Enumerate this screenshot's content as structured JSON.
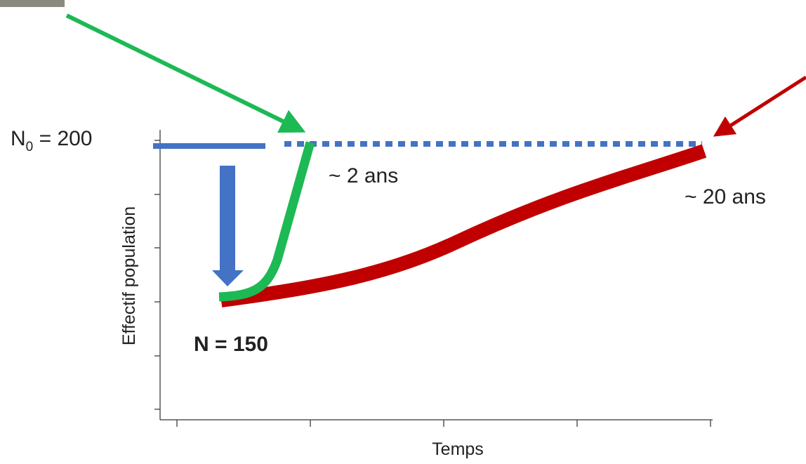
{
  "start_label": {
    "main": "N",
    "sub": "0",
    "rest": " = 200"
  },
  "fast_label": "~ 2 ans",
  "slow_label": "~ 20 ans",
  "low_label": "N = 150",
  "y_axis_label": "Effectif population",
  "x_axis_label": "Temps"
}
